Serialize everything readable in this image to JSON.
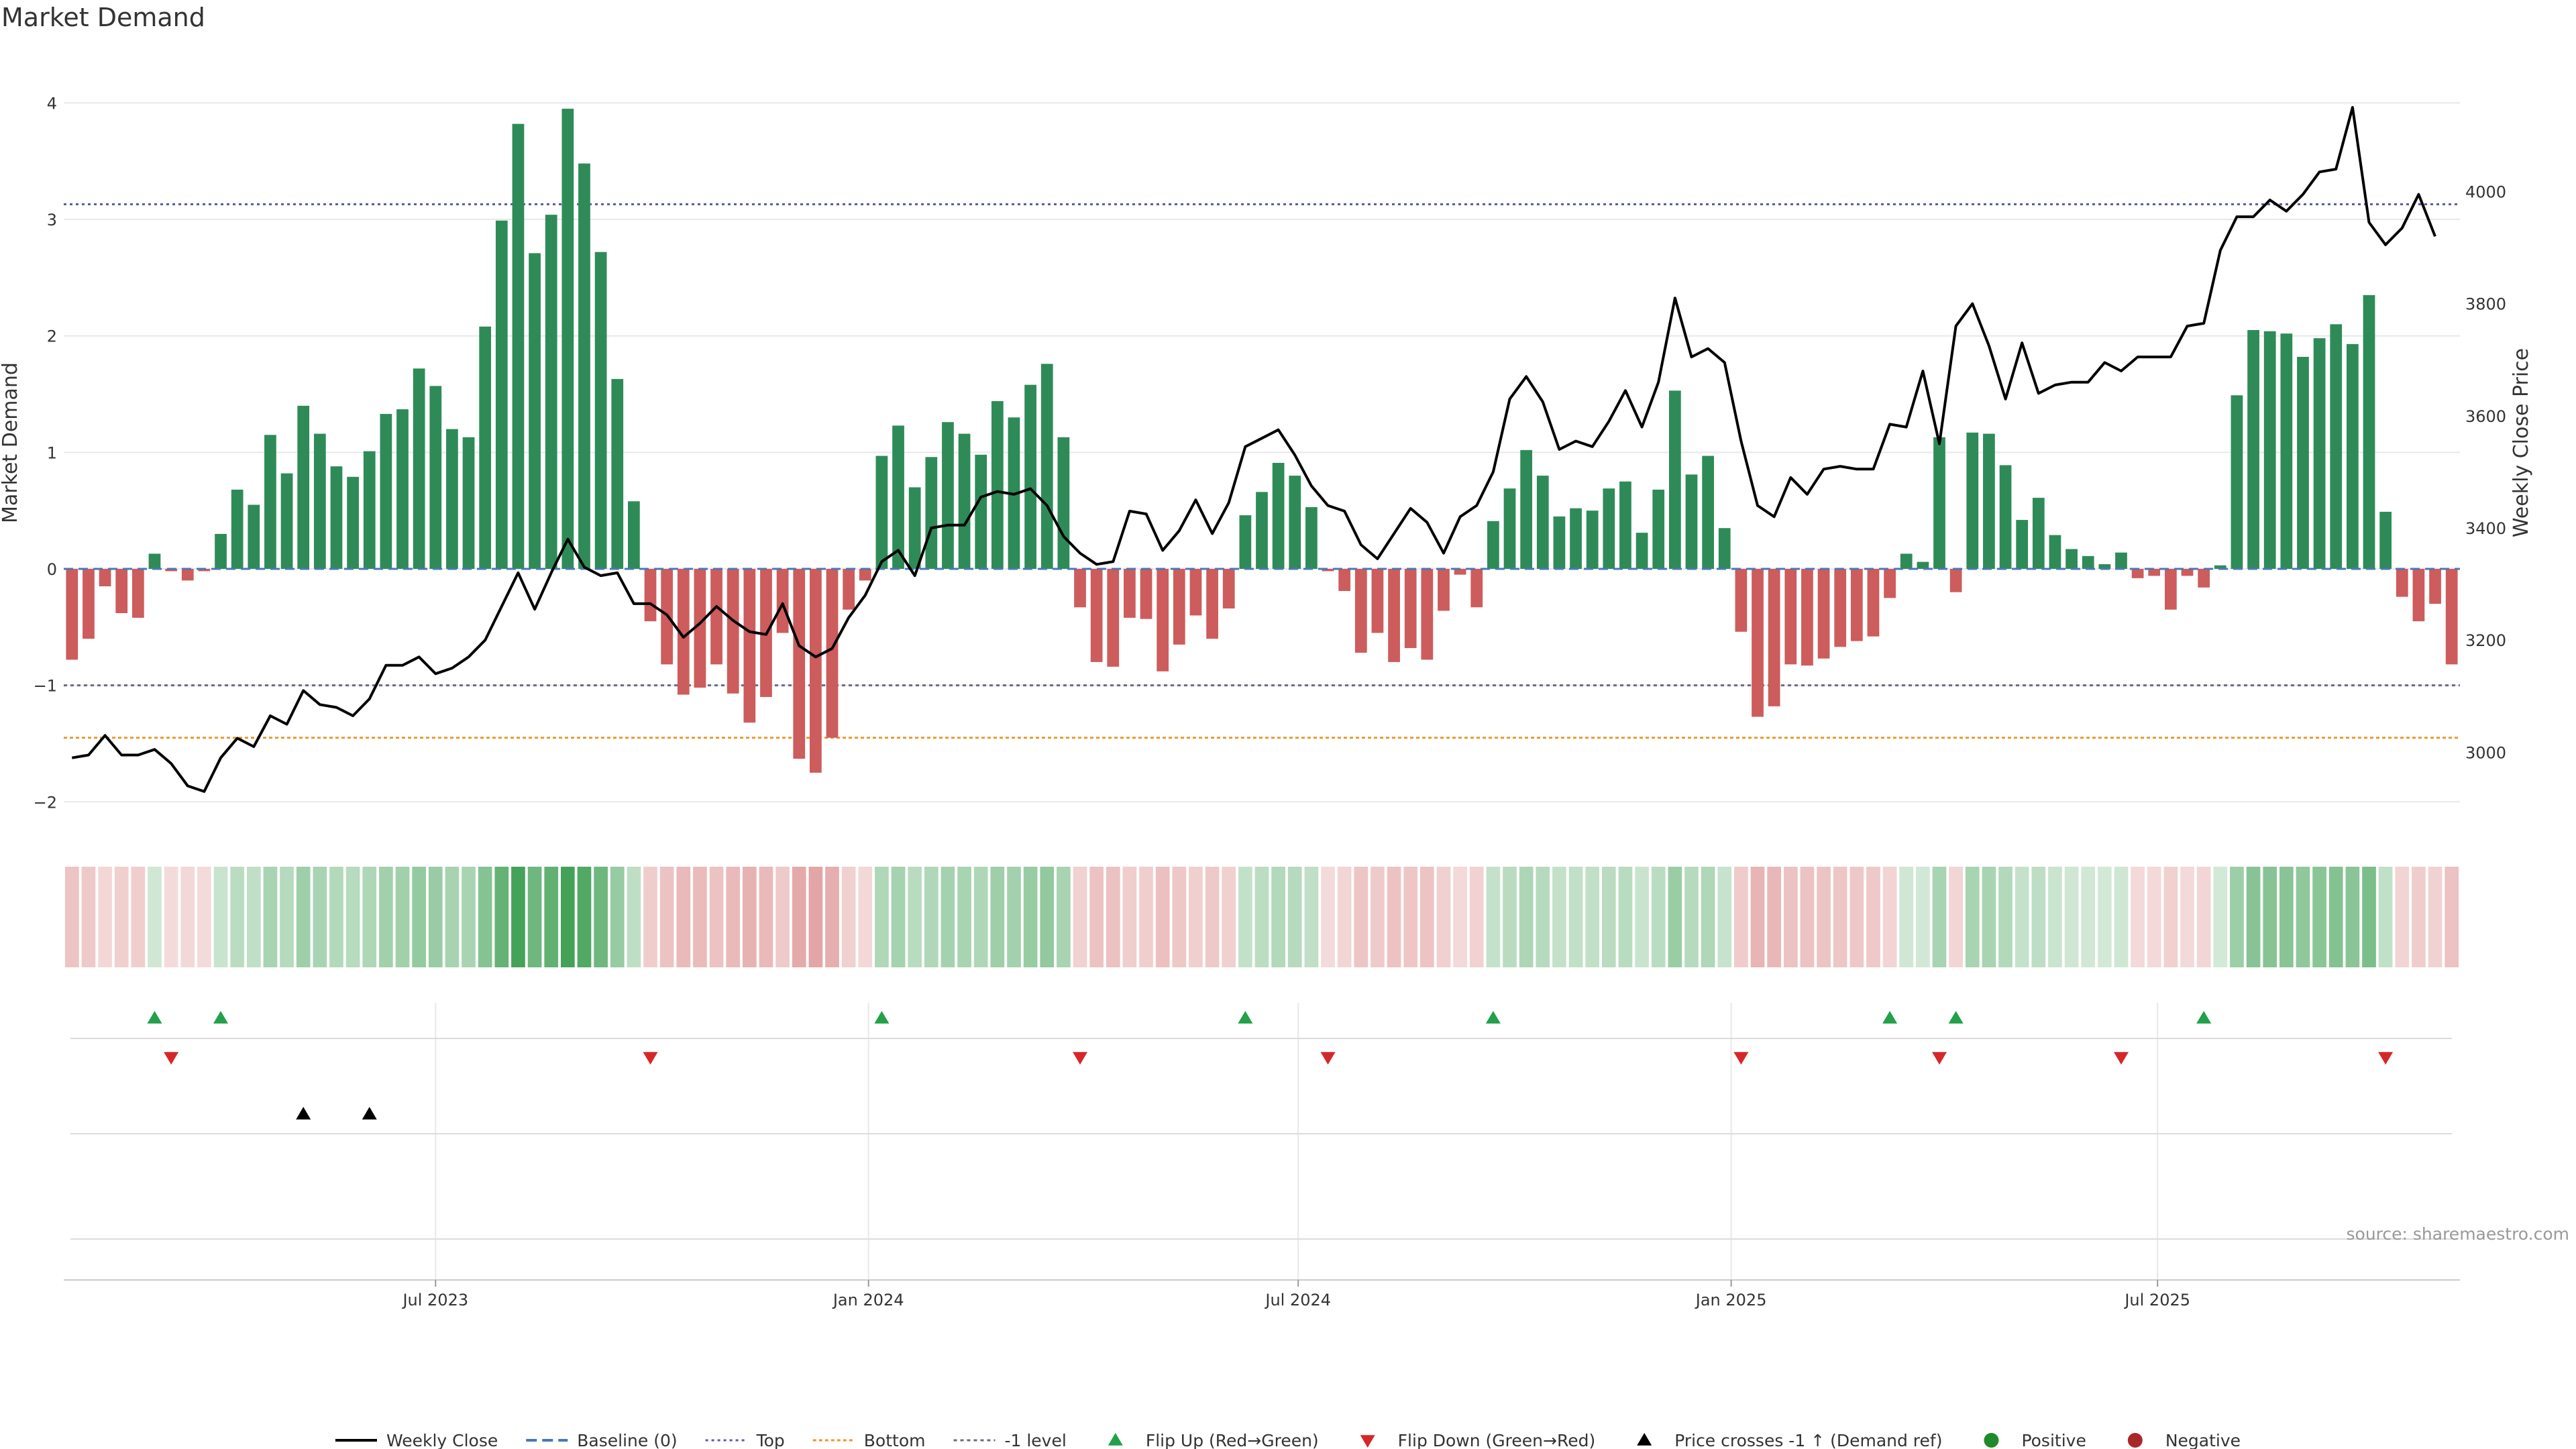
{
  "title": "Market Demand",
  "source_note": "source: sharemaestro.com",
  "chart_data": {
    "type": "bar",
    "title": "Market Demand",
    "ylabel_left": "Market Demand",
    "ylabel_right": "Weekly Close Price",
    "ylim_left": [
      -2.2,
      4.25
    ],
    "ylim_right": [
      2870,
      4210
    ],
    "left_ticks": [
      {
        "v": 4,
        "label": "4"
      },
      {
        "v": 3,
        "label": "3"
      },
      {
        "v": 2,
        "label": "2"
      },
      {
        "v": 1,
        "label": "1"
      },
      {
        "v": 0,
        "label": "0"
      },
      {
        "v": -1,
        "label": "−1"
      },
      {
        "v": -2,
        "label": "−2"
      }
    ],
    "right_ticks": [
      {
        "v": 4000,
        "label": "4000"
      },
      {
        "v": 3800,
        "label": "3800"
      },
      {
        "v": 3600,
        "label": "3600"
      },
      {
        "v": 3400,
        "label": "3400"
      },
      {
        "v": 3200,
        "label": "3200"
      },
      {
        "v": 3000,
        "label": "3000"
      }
    ],
    "x_ticks": [
      {
        "i": 22,
        "label": "Jul 2023"
      },
      {
        "i": 48.2,
        "label": "Jan 2024"
      },
      {
        "i": 74.2,
        "label": "Jul 2024"
      },
      {
        "i": 100.4,
        "label": "Jan 2025"
      },
      {
        "i": 126.2,
        "label": "Jul 2025"
      }
    ],
    "reference_lines": {
      "top": 3.13,
      "bottom": -1.45,
      "minus_one": -1.0,
      "baseline": 0
    },
    "demand": [
      -0.78,
      -0.6,
      -0.15,
      -0.38,
      -0.42,
      0.13,
      -0.02,
      -0.1,
      -0.02,
      0.3,
      0.68,
      0.55,
      1.15,
      0.82,
      1.4,
      1.16,
      0.88,
      0.79,
      1.01,
      1.33,
      1.37,
      1.72,
      1.57,
      1.2,
      1.13,
      2.08,
      2.99,
      3.82,
      2.71,
      3.04,
      3.95,
      3.48,
      2.72,
      1.63,
      0.58,
      -0.45,
      -0.82,
      -1.08,
      -1.02,
      -0.82,
      -1.07,
      -1.32,
      -1.1,
      -0.55,
      -1.63,
      -1.75,
      -1.45,
      -0.35,
      -0.1,
      0.97,
      1.23,
      0.7,
      0.96,
      1.26,
      1.16,
      0.98,
      1.44,
      1.3,
      1.58,
      1.76,
      1.13,
      -0.33,
      -0.8,
      -0.84,
      -0.42,
      -0.43,
      -0.88,
      -0.65,
      -0.4,
      -0.6,
      -0.34,
      0.46,
      0.66,
      0.91,
      0.8,
      0.53,
      -0.02,
      -0.19,
      -0.72,
      -0.55,
      -0.8,
      -0.68,
      -0.78,
      -0.36,
      -0.05,
      -0.33,
      0.41,
      0.69,
      1.02,
      0.8,
      0.45,
      0.52,
      0.5,
      0.69,
      0.75,
      0.31,
      0.68,
      1.53,
      0.81,
      0.97,
      0.35,
      -0.54,
      -1.27,
      -1.18,
      -0.82,
      -0.83,
      -0.77,
      -0.67,
      -0.62,
      -0.58,
      -0.25,
      0.13,
      0.06,
      1.13,
      -0.2,
      1.17,
      1.16,
      0.89,
      0.42,
      0.61,
      0.29,
      0.17,
      0.11,
      0.04,
      0.14,
      -0.08,
      -0.06,
      -0.35,
      -0.06,
      -0.16,
      0.03,
      1.49,
      2.05,
      2.04,
      2.02,
      1.82,
      1.98,
      2.1,
      1.93,
      2.35,
      0.49,
      -0.24,
      -0.45,
      -0.3,
      -0.82
    ],
    "weekly_close": [
      2990,
      2995,
      3030,
      2995,
      2995,
      3005,
      2980,
      2940,
      2930,
      2990,
      3025,
      3010,
      3065,
      3050,
      3110,
      3085,
      3080,
      3065,
      3095,
      3155,
      3155,
      3170,
      3140,
      3150,
      3170,
      3200,
      3260,
      3320,
      3255,
      3320,
      3380,
      3330,
      3315,
      3320,
      3265,
      3265,
      3245,
      3205,
      3230,
      3260,
      3235,
      3215,
      3210,
      3265,
      3190,
      3170,
      3185,
      3240,
      3280,
      3340,
      3360,
      3315,
      3400,
      3405,
      3405,
      3455,
      3465,
      3460,
      3470,
      3440,
      3385,
      3355,
      3335,
      3340,
      3430,
      3425,
      3360,
      3395,
      3450,
      3390,
      3445,
      3545,
      3560,
      3575,
      3530,
      3475,
      3440,
      3430,
      3370,
      3345,
      3390,
      3435,
      3410,
      3355,
      3420,
      3440,
      3500,
      3630,
      3670,
      3625,
      3540,
      3555,
      3545,
      3590,
      3645,
      3580,
      3660,
      3810,
      3705,
      3720,
      3695,
      3555,
      3440,
      3420,
      3490,
      3460,
      3505,
      3510,
      3505,
      3505,
      3585,
      3580,
      3680,
      3550,
      3760,
      3800,
      3725,
      3630,
      3730,
      3640,
      3655,
      3660,
      3660,
      3695,
      3680,
      3705,
      3705,
      3705,
      3760,
      3765,
      3895,
      3955,
      3955,
      3985,
      3965,
      3995,
      4035,
      4040,
      4150,
      3945,
      3905,
      3935,
      3995,
      3920
    ],
    "flip_up": [
      5,
      9,
      49,
      71,
      86,
      110,
      114,
      129
    ],
    "flip_down": [
      6,
      35,
      61,
      76,
      101,
      113,
      124,
      140
    ],
    "price_cross": [
      14,
      18
    ],
    "legend": [
      {
        "key": "close",
        "label": "Weekly Close"
      },
      {
        "key": "baseline",
        "label": "Baseline (0)"
      },
      {
        "key": "top",
        "label": "Top"
      },
      {
        "key": "bottom",
        "label": "Bottom"
      },
      {
        "key": "minus_one",
        "label": "-1 level"
      },
      {
        "key": "flip_up",
        "label": "Flip Up (Red→Green)"
      },
      {
        "key": "flip_down",
        "label": "Flip Down (Green→Red)"
      },
      {
        "key": "cross",
        "label": "Price crosses -1 ↑ (Demand ref)"
      },
      {
        "key": "positive",
        "label": "Positive"
      },
      {
        "key": "negative",
        "label": "Negative"
      }
    ]
  },
  "colors": {
    "positive_bar": "#2e8b57",
    "negative_bar": "#cd5c5c",
    "close_line": "#000000",
    "baseline": "#4a78b5",
    "top_line": "#5b5ba8",
    "bottom_line": "#e69a2e",
    "minus_one_line": "#6a6a8a",
    "flip_up": "#22a04a",
    "flip_down": "#d62728",
    "cross": "#000000",
    "positive_dot": "#1f8a2a",
    "negative_dot": "#a82828",
    "grid": "#e8e8e8"
  }
}
